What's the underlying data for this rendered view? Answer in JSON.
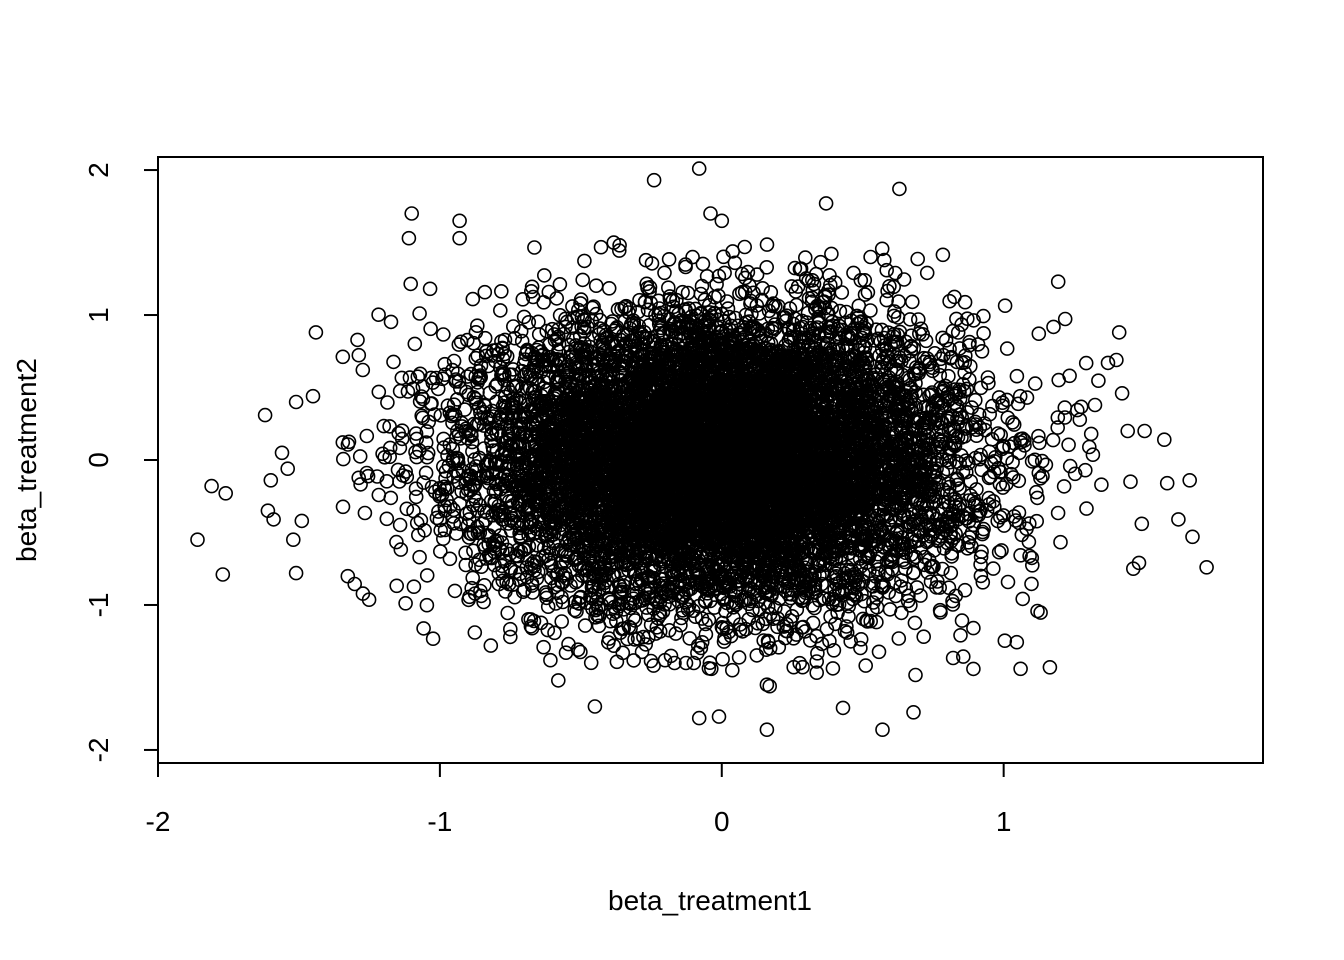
{
  "chart_data": {
    "type": "scatter",
    "title": "",
    "xlabel": "beta_treatment1",
    "ylabel": "beta_treatment2",
    "xlim": [
      -2.0,
      1.92
    ],
    "ylim": [
      -2.09,
      2.09
    ],
    "x_ticks": [
      -2,
      -1,
      0,
      1
    ],
    "x_tick_labels": [
      "-2",
      "-1",
      "0",
      "1"
    ],
    "y_ticks": [
      -2,
      -1,
      0,
      1,
      2
    ],
    "y_tick_labels": [
      "-2",
      "-1",
      "0",
      "1",
      "2"
    ],
    "grid": false,
    "marker": "open-circle",
    "marker_color": "#000000",
    "points_note_values": {
      "x_mean": 0.0,
      "x_sd": 0.43,
      "y_mean": 0.0,
      "y_sd": 0.5,
      "n": 10000
    },
    "outliers": [
      {
        "x": -1.86,
        "y": -0.55
      },
      {
        "x": -1.81,
        "y": -0.18
      },
      {
        "x": -1.76,
        "y": -0.23
      },
      {
        "x": -1.77,
        "y": -0.79
      },
      {
        "x": -1.62,
        "y": 0.31
      },
      {
        "x": -1.61,
        "y": -0.35
      },
      {
        "x": -1.6,
        "y": -0.14
      },
      {
        "x": -1.59,
        "y": -0.41
      },
      {
        "x": -1.56,
        "y": 0.05
      },
      {
        "x": -1.54,
        "y": -0.06
      },
      {
        "x": -1.52,
        "y": -0.55
      },
      {
        "x": -1.51,
        "y": -0.78
      },
      {
        "x": -1.51,
        "y": 0.4
      },
      {
        "x": -1.49,
        "y": -0.42
      },
      {
        "x": -1.44,
        "y": 0.88
      },
      {
        "x": -1.45,
        "y": 0.44
      },
      {
        "x": -1.1,
        "y": 1.7
      },
      {
        "x": -1.11,
        "y": 1.53
      },
      {
        "x": -0.93,
        "y": 1.65
      },
      {
        "x": -0.93,
        "y": 1.53
      },
      {
        "x": -0.08,
        "y": 2.01
      },
      {
        "x": -0.24,
        "y": 1.93
      },
      {
        "x": 0.63,
        "y": 1.87
      },
      {
        "x": 0.37,
        "y": 1.77
      },
      {
        "x": -0.04,
        "y": 1.7
      },
      {
        "x": 0.0,
        "y": 1.65
      },
      {
        "x": 1.72,
        "y": -0.74
      },
      {
        "x": 1.66,
        "y": -0.14
      },
      {
        "x": 1.62,
        "y": -0.41
      },
      {
        "x": 1.67,
        "y": -0.53
      },
      {
        "x": 1.57,
        "y": 0.14
      },
      {
        "x": 1.58,
        "y": -0.16
      },
      {
        "x": 1.5,
        "y": 0.2
      },
      {
        "x": 1.49,
        "y": -0.44
      },
      {
        "x": 1.48,
        "y": -0.71
      },
      {
        "x": 1.46,
        "y": -0.75
      },
      {
        "x": 1.45,
        "y": -0.15
      },
      {
        "x": 1.44,
        "y": 0.2
      },
      {
        "x": 1.42,
        "y": 0.46
      },
      {
        "x": 1.41,
        "y": 0.88
      },
      {
        "x": 1.4,
        "y": 0.69
      },
      {
        "x": 1.37,
        "y": 0.67
      },
      {
        "x": 0.16,
        "y": -1.86
      },
      {
        "x": 0.57,
        "y": -1.86
      },
      {
        "x": -0.08,
        "y": -1.78
      },
      {
        "x": -0.01,
        "y": -1.77
      },
      {
        "x": 0.43,
        "y": -1.71
      },
      {
        "x": 0.68,
        "y": -1.74
      },
      {
        "x": -0.45,
        "y": -1.7
      },
      {
        "x": 0.16,
        "y": -1.55
      },
      {
        "x": 0.17,
        "y": -1.56
      },
      {
        "x": -0.58,
        "y": -1.52
      },
      {
        "x": 1.06,
        "y": -1.44
      }
    ]
  }
}
